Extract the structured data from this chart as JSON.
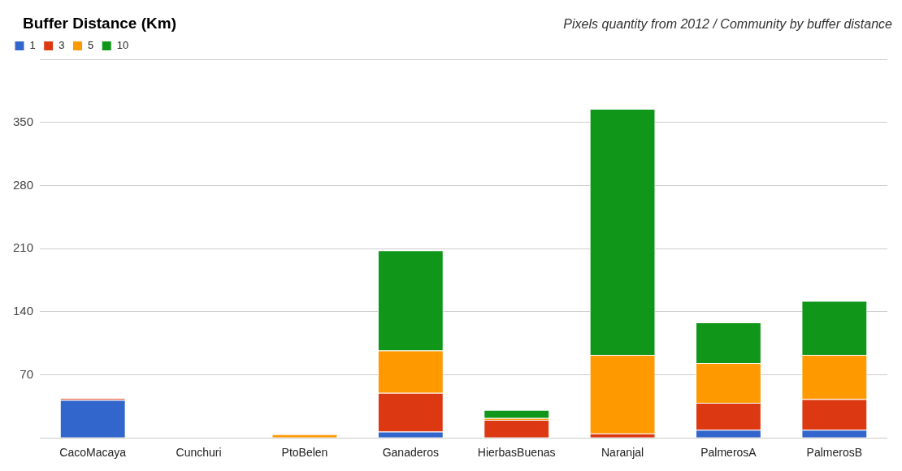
{
  "chart_data": {
    "type": "bar",
    "title": "Buffer Distance (Km)",
    "subtitle": "Pixels quantity from 2012 / Community by buffer distance",
    "stacked": true,
    "legend": "top left",
    "grid": "y",
    "categories": [
      "CacoMacaya",
      "Cunchuri",
      "PtoBelen",
      "Ganaderos",
      "HierbasBuenas",
      "Naranjal",
      "PalmerosA",
      "PalmerosB"
    ],
    "series": [
      {
        "name": "1",
        "color": "#3366cc",
        "values": [
          42,
          0,
          0,
          7,
          0,
          0,
          9,
          9
        ]
      },
      {
        "name": "3",
        "color": "#dc3912",
        "values": [
          2,
          0,
          0,
          43,
          20,
          5,
          30,
          34
        ]
      },
      {
        "name": "5",
        "color": "#ff9900",
        "values": [
          0,
          0,
          4,
          47,
          2,
          87,
          44,
          49
        ]
      },
      {
        "name": "10",
        "color": "#109618",
        "values": [
          0,
          0,
          0,
          111,
          9,
          273,
          45,
          60
        ]
      }
    ],
    "ylim": [
      0,
      420
    ],
    "yticks": [
      {
        "value": 0,
        "label": null
      },
      70,
      140,
      210,
      280,
      350,
      {
        "value": 420,
        "label": null
      }
    ]
  }
}
